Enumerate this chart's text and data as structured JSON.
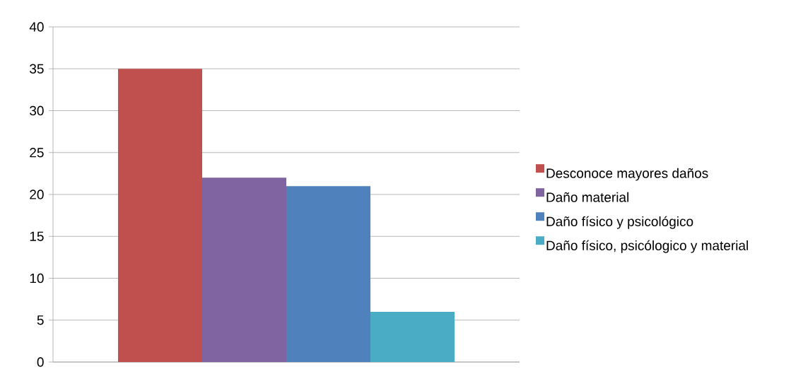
{
  "chart_data": {
    "type": "bar",
    "categories": [
      null
    ],
    "series": [
      {
        "name": "Desconoce mayores daños",
        "color": "#c0504d",
        "values": [
          35
        ]
      },
      {
        "name": "Daño material",
        "color": "#8064a2",
        "values": [
          22
        ]
      },
      {
        "name": "Daño físico y psicológico",
        "color": "#4f81bd",
        "values": [
          21
        ]
      },
      {
        "name": "Daño físico, psicólogico y material",
        "color": "#4bacc6",
        "values": [
          6
        ]
      }
    ],
    "ylim": [
      0,
      40
    ],
    "yticks": [
      0,
      5,
      10,
      15,
      20,
      25,
      30,
      35,
      40
    ],
    "grid": "y",
    "legend": "right"
  }
}
